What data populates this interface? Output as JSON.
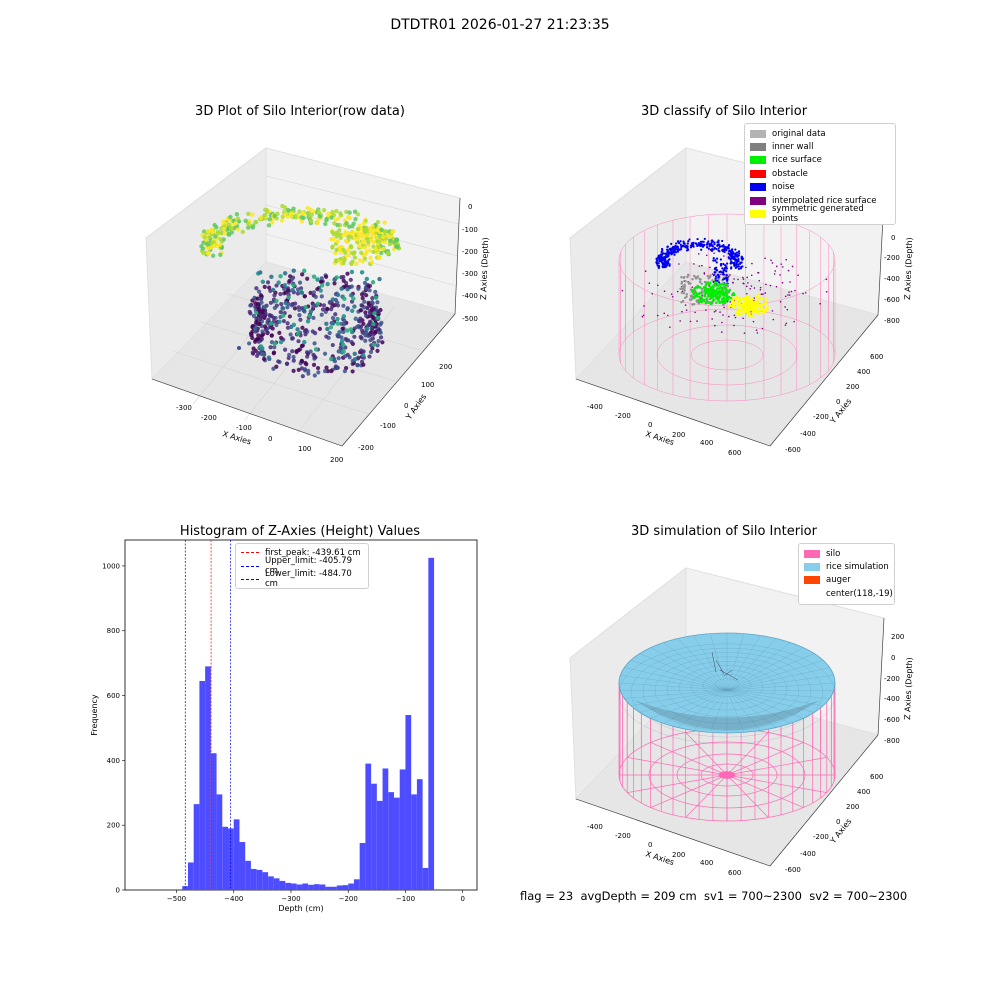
{
  "suptitle": "DTDTR01 2026-01-27 21:23:35",
  "footer": "flag = 23  avgDepth = 209 cm  sv1 = 700~2300  sv2 = 700~2300",
  "chart_data": [
    {
      "type": "scatter",
      "title": "3D Plot of Silo Interior(row data)",
      "xlabel": "X Axies",
      "ylabel": "Y Axies",
      "zlabel": "Z Axies (Depth)",
      "xticks": [
        "-300",
        "-200",
        "-100",
        "0",
        "100",
        "200"
      ],
      "yticks": [
        "-200",
        "-100",
        "0",
        "100",
        "200"
      ],
      "zticks": [
        "0",
        "-100",
        "-200",
        "-300",
        "-400",
        "-500"
      ],
      "colormap": "viridis",
      "grid": true
    },
    {
      "type": "scatter",
      "title": "3D classify of Silo Interior",
      "xlabel": "X Axies",
      "ylabel": "Y Axies",
      "zlabel": "Z Axies (Depth)",
      "xticks": [
        "-400",
        "-200",
        "0",
        "200",
        "400",
        "600"
      ],
      "yticks": [
        "-600",
        "-400",
        "-200",
        "0",
        "200",
        "400",
        "600"
      ],
      "zticks": [
        "0",
        "-200",
        "-400",
        "-600",
        "-800"
      ],
      "legend_position": "top-right",
      "legend": [
        {
          "label": "original data",
          "color": "#b3b3b3"
        },
        {
          "label": "inner wall",
          "color": "#808080"
        },
        {
          "label": "rice surface",
          "color": "#00ee00"
        },
        {
          "label": "obstacle",
          "color": "#ff0000"
        },
        {
          "label": "noise",
          "color": "#0000ee"
        },
        {
          "label": "interpolated rice surface",
          "color": "#800080"
        },
        {
          "label": "symmetric generated points",
          "color": "#ffff00"
        }
      ],
      "grid": true
    },
    {
      "type": "bar",
      "title": "Histogram of Z-Axies (Height) Values",
      "xlabel": "Depth (cm)",
      "ylabel": "Frequency",
      "xlim": [
        -590,
        25
      ],
      "ylim": [
        0,
        1080
      ],
      "xticks": [
        -500,
        -400,
        -300,
        -200,
        -100,
        0
      ],
      "yticks": [
        0,
        200,
        400,
        600,
        800,
        1000
      ],
      "bar_color": "#4d4dff",
      "bin_start": -490,
      "bin_width": 10,
      "values": [
        12,
        85,
        265,
        645,
        690,
        422,
        295,
        195,
        190,
        218,
        148,
        90,
        65,
        62,
        55,
        42,
        36,
        28,
        22,
        20,
        17,
        20,
        16,
        18,
        17,
        10,
        10,
        14,
        15,
        20,
        33,
        145,
        390,
        328,
        275,
        375,
        302,
        285,
        372,
        540,
        295,
        342,
        68,
        1025
      ],
      "vlines": [
        {
          "label": "first_peak: -439.61 cm",
          "value": -439.61,
          "color": "#ff0000"
        },
        {
          "label": "Upper_limit: -405.79 cm",
          "value": -405.79,
          "color": "#0000ff"
        },
        {
          "label": "Lower_limit: -484.70 cm",
          "value": -484.7,
          "color": "#0000ff"
        }
      ],
      "legend_position": "top-left"
    },
    {
      "type": "area",
      "title": "3D simulation of Silo Interior",
      "xlabel": "X Axies",
      "ylabel": "Y Axies",
      "zlabel": "Z Axies (Depth)",
      "xticks": [
        "-400",
        "-200",
        "0",
        "200",
        "400",
        "600"
      ],
      "yticks": [
        "-600",
        "-400",
        "-200",
        "0",
        "200",
        "400",
        "600"
      ],
      "zticks": [
        "200",
        "0",
        "-200",
        "-400",
        "-600",
        "-800"
      ],
      "legend_position": "top-right",
      "legend": [
        {
          "label": "silo",
          "color": "#ff69b4"
        },
        {
          "label": "rice simulation",
          "color": "#87ceeb"
        },
        {
          "label": "auger",
          "color": "#ff4500"
        },
        {
          "label": "center(118,-19)",
          "color": ""
        }
      ],
      "grid": true
    }
  ]
}
